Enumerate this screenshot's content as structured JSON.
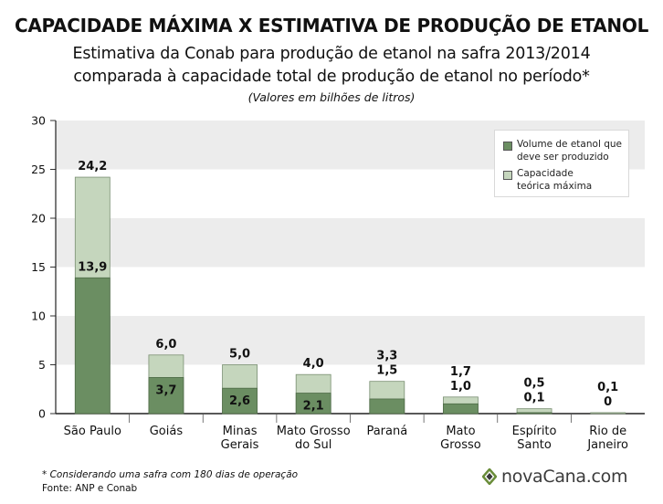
{
  "title": "CAPACIDADE MÁXIMA X ESTIMATIVA DE PRODUÇÃO DE ETANOL",
  "subtitle_line1": "Estimativa da Conab para produção de etanol na safra 2013/2014",
  "subtitle_line2": "comparada à capacidade total de produção de etanol no período*",
  "unit_note": "(Valores em bilhões de litros)",
  "footnote": "* Considerando uma safra com 180 dias de operação",
  "source": "Fonte: ANP e Conab",
  "logo": {
    "text": "novaCana.com",
    "icon": "diamond-logo-icon"
  },
  "colors": {
    "production": "#6b8e62",
    "capacity": "#c5d6bd",
    "grid_band": "#ececec",
    "text": "#111111"
  },
  "legend": [
    {
      "label": "Volume de etanol que\ndeve ser produzido",
      "series": "production"
    },
    {
      "label": "Capacidade\nteórica máxima",
      "series": "capacity"
    }
  ],
  "chart_data": {
    "type": "bar",
    "stacking": "overlay",
    "categories": [
      "São Paulo",
      "Goiás",
      "Minas Gerais",
      "Mato Grosso do Sul",
      "Paraná",
      "Mato Grosso",
      "Espírito Santo",
      "Rio de Janeiro"
    ],
    "category_labels": [
      [
        "São Paulo"
      ],
      [
        "Goiás"
      ],
      [
        "Minas",
        "Gerais"
      ],
      [
        "Mato Grosso",
        "do Sul"
      ],
      [
        "Paraná"
      ],
      [
        "Mato",
        "Grosso"
      ],
      [
        "Espírito",
        "Santo"
      ],
      [
        "Rio de",
        "Janeiro"
      ]
    ],
    "series": [
      {
        "name": "Capacidade teórica máxima",
        "key": "capacity",
        "values": [
          24.2,
          6.0,
          5.0,
          4.0,
          3.3,
          1.7,
          0.5,
          0.1
        ],
        "labels": [
          "24,2",
          "6,0",
          "5,0",
          "4,0",
          "3,3",
          "1,7",
          "0,5",
          "0,1"
        ]
      },
      {
        "name": "Volume de etanol que deve ser produzido",
        "key": "production",
        "values": [
          13.9,
          3.7,
          2.6,
          2.1,
          1.5,
          1.0,
          0.1,
          0
        ],
        "labels": [
          "13,9",
          "3,7",
          "2,6",
          "2,1",
          "1,5",
          "1,0",
          "0,1",
          "0"
        ]
      }
    ],
    "ylim": [
      0,
      30
    ],
    "yticks": [
      0,
      5,
      10,
      15,
      20,
      25,
      30
    ],
    "ytick_labels": [
      "0",
      "5",
      "10",
      "15",
      "20",
      "25",
      "30"
    ],
    "grid": "alternating horizontal bands",
    "legend_position": "top-right"
  }
}
